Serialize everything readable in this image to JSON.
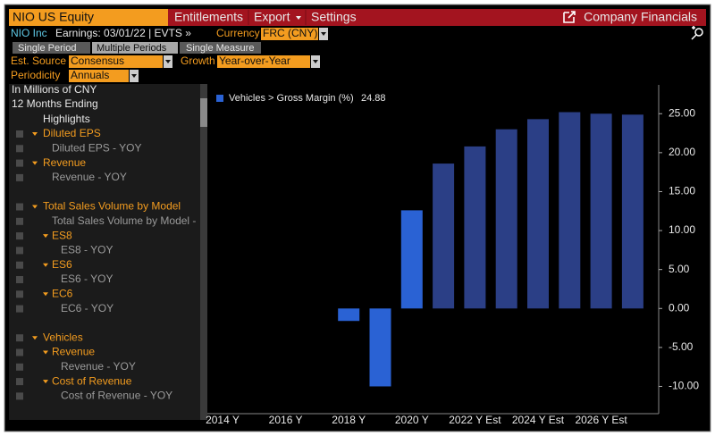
{
  "header": {
    "ticker": "NIO US Equity",
    "menu": [
      "Entitlements",
      "Export",
      "Settings"
    ],
    "link": "Company Financials"
  },
  "toolbar": {
    "company": "NIO Inc",
    "earnings": "Earnings: 03/01/22 | EVTS »",
    "currency_label": "Currency",
    "currency": "FRC (CNY)"
  },
  "tabs": [
    "Single Period",
    "Multiple Periods",
    "Single Measure"
  ],
  "options": {
    "est_source_label": "Est. Source",
    "est_source": "Consensus",
    "growth_label": "Growth",
    "growth": "Year-over-Year",
    "periodicity_label": "Periodicity",
    "periodicity": "Annuals"
  },
  "panel": {
    "units": "In Millions of CNY",
    "period": "12 Months Ending",
    "heading": "Highlights",
    "tree": [
      {
        "label": "Diluted EPS",
        "children": [
          "Diluted EPS - YOY"
        ]
      },
      {
        "label": "Revenue",
        "children": [
          "Revenue - YOY"
        ]
      },
      {
        "label": "Total Sales Volume by Model",
        "children": [
          "Total Sales Volume by Model -",
          {
            "label": "ES8",
            "children": [
              "ES8 - YOY"
            ]
          },
          {
            "label": "ES6",
            "children": [
              "ES6 - YOY"
            ]
          },
          {
            "label": "EC6",
            "children": [
              "EC6 - YOY"
            ]
          }
        ]
      },
      {
        "label": "Vehicles",
        "children": [
          {
            "label": "Revenue",
            "children": [
              "Revenue - YOY"
            ]
          },
          {
            "label": "Cost of Revenue",
            "children": [
              "Cost of Revenue - YOY"
            ]
          }
        ]
      }
    ]
  },
  "chart_data": {
    "type": "bar",
    "categories": [
      "2014 Y",
      null,
      "2016 Y",
      null,
      "2018 Y",
      null,
      "2020 Y",
      null,
      "2022 Y Est",
      null,
      "2024 Y Est",
      null,
      "2026 Y Est",
      null
    ],
    "series": [
      {
        "name": "Vehicles > Gross Margin (%)",
        "color": "#2a62d4",
        "colors": [
          "#2a62d4",
          "#2a62d4",
          "#2a62d4",
          "#2a62d4",
          "#2a62d4",
          "#2a62d4",
          "#2a62d4",
          "#2b3f86",
          "#2b3f86",
          "#2b3f86",
          "#2b3f86",
          "#2b3f86",
          "#2b3f86",
          "#2b3f86"
        ],
        "values": [
          null,
          null,
          null,
          null,
          -1.6,
          -10.0,
          12.6,
          18.6,
          20.8,
          23.0,
          24.3,
          25.2,
          25.0,
          24.88
        ]
      }
    ],
    "ylim": [
      -13.5,
      28.7
    ],
    "yticks": [
      {
        "value": -10,
        "label": "-10.00"
      },
      {
        "value": -5,
        "label": "-5.00"
      },
      {
        "value": 0,
        "label": "0.00"
      },
      {
        "value": 5,
        "label": "5.00"
      },
      {
        "value": 10,
        "label": "10.00"
      },
      {
        "value": 15,
        "label": "15.00"
      },
      {
        "value": 20,
        "label": "20.00"
      },
      {
        "value": 25,
        "label": "25.00"
      }
    ],
    "grid": false
  }
}
